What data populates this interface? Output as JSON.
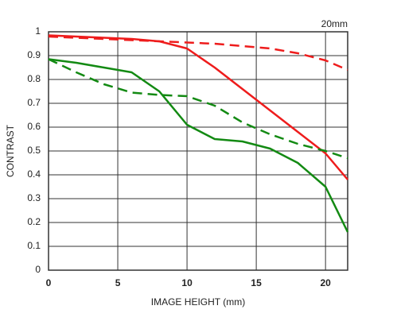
{
  "chart_data": {
    "type": "line",
    "title": "20mm",
    "x_label": "IMAGE HEIGHT (mm)",
    "y_label": "CONTRAST",
    "x": [
      0,
      2,
      4,
      6,
      8,
      10,
      12,
      14,
      16,
      18,
      20,
      21.6
    ],
    "series": [
      {
        "color": "#ee1c1c",
        "dashed": false,
        "values": [
          0.985,
          0.98,
          0.975,
          0.97,
          0.96,
          0.93,
          0.85,
          0.76,
          0.67,
          0.58,
          0.49,
          0.38
        ]
      },
      {
        "color": "#ee1c1c",
        "dashed": true,
        "values": [
          0.98,
          0.975,
          0.97,
          0.965,
          0.96,
          0.955,
          0.95,
          0.94,
          0.93,
          0.91,
          0.88,
          0.84
        ]
      },
      {
        "color": "#138a13",
        "dashed": false,
        "values": [
          0.885,
          0.87,
          0.85,
          0.83,
          0.75,
          0.61,
          0.55,
          0.54,
          0.51,
          0.45,
          0.35,
          0.16
        ]
      },
      {
        "color": "#138a13",
        "dashed": true,
        "values": [
          0.885,
          0.83,
          0.78,
          0.745,
          0.735,
          0.73,
          0.69,
          0.62,
          0.57,
          0.53,
          0.5,
          0.47
        ]
      }
    ],
    "xlim": [
      0,
      21.6
    ],
    "ylim": [
      0,
      1
    ],
    "xticks": [
      0,
      5,
      10,
      15,
      20
    ],
    "yticks": [
      0,
      0.1,
      0.2,
      0.3,
      0.4,
      0.5,
      0.6,
      0.7,
      0.8,
      0.9,
      1
    ],
    "grid": true
  }
}
